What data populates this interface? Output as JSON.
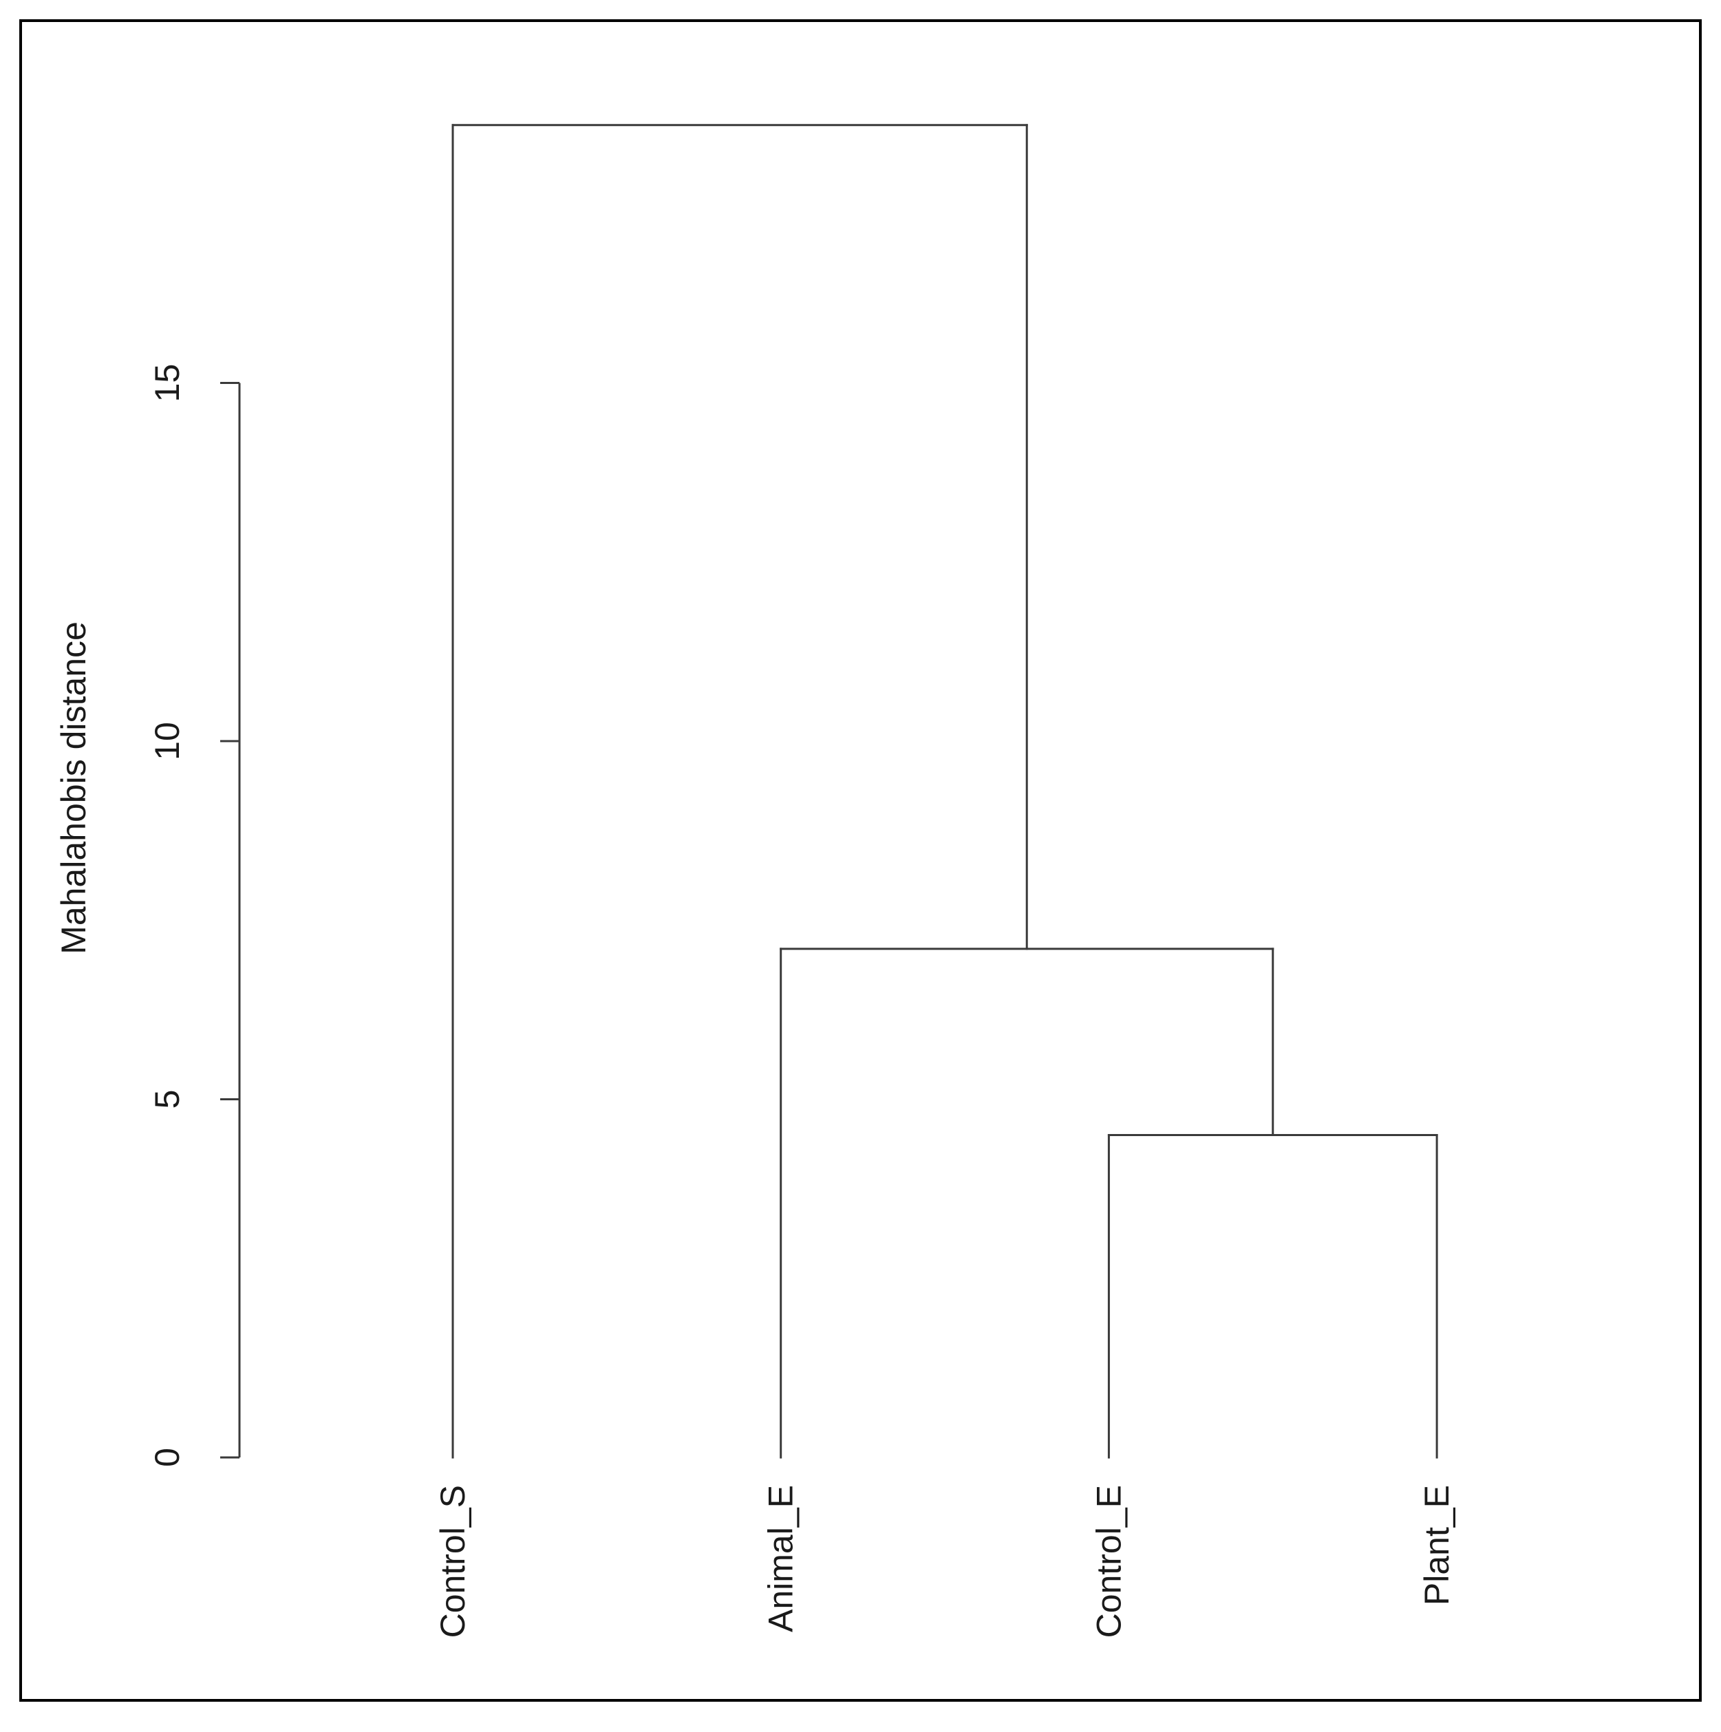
{
  "chart_data": {
    "type": "dendrogram",
    "title": "",
    "xlabel": "",
    "ylabel": "Mahalahobis distance",
    "ylim": [
      0,
      18.5
    ],
    "yticks": [
      0,
      5,
      10,
      15
    ],
    "ytick_labels": [
      "0",
      "5",
      "10",
      "15"
    ],
    "leaves": [
      "Control_S",
      "Animal_E",
      "Control_E",
      "Plant_E"
    ],
    "merges": [
      {
        "left": "Control_E",
        "right": "Plant_E",
        "height": 4.5
      },
      {
        "left": "Animal_E",
        "right": "Control_E + Plant_E",
        "height": 7.1
      },
      {
        "left": "Control_S",
        "right": "Animal_E + Control_E + Plant_E",
        "height": 18.6
      }
    ],
    "grid": false,
    "legend": "none",
    "line_color": "#3a3a3a",
    "frame_color": "#000000"
  }
}
